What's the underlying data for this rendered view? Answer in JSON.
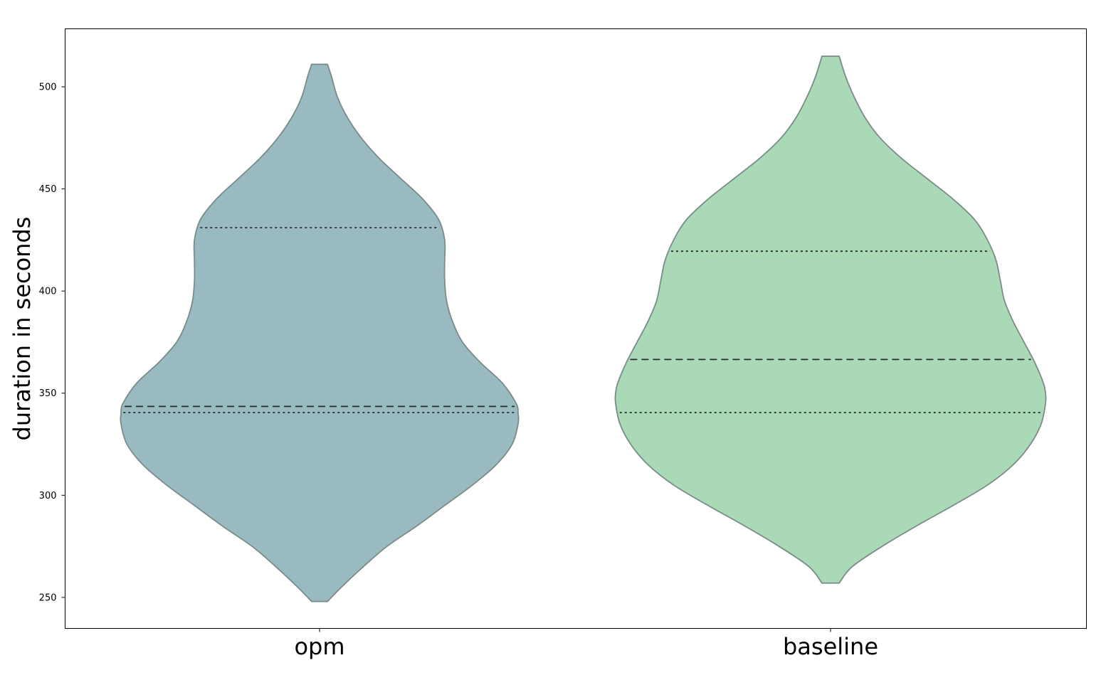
{
  "chart_data": {
    "type": "violin",
    "title": "",
    "xlabel": "",
    "ylabel": "duration in seconds",
    "ylim": [
      234.8,
      528.4
    ],
    "yticks": [
      250,
      300,
      350,
      400,
      450,
      500
    ],
    "grid": false,
    "legend": "none",
    "categories": [
      "opm",
      "baseline"
    ],
    "series": [
      {
        "category": "opm",
        "color": "#99bac1",
        "edge_color": "#7a8b88",
        "min": 248,
        "max": 511,
        "q1": 340.5,
        "median": 343.5,
        "q3": 431,
        "density_profile": [
          [
            248,
            0.04
          ],
          [
            255,
            0.11
          ],
          [
            265,
            0.22
          ],
          [
            275,
            0.34
          ],
          [
            285,
            0.49
          ],
          [
            295,
            0.63
          ],
          [
            305,
            0.77
          ],
          [
            315,
            0.89
          ],
          [
            325,
            0.97
          ],
          [
            335,
            1.0
          ],
          [
            340,
            1.0
          ],
          [
            345,
            0.99
          ],
          [
            355,
            0.92
          ],
          [
            365,
            0.81
          ],
          [
            375,
            0.72
          ],
          [
            385,
            0.67
          ],
          [
            395,
            0.64
          ],
          [
            405,
            0.63
          ],
          [
            415,
            0.63
          ],
          [
            425,
            0.63
          ],
          [
            435,
            0.6
          ],
          [
            445,
            0.52
          ],
          [
            455,
            0.41
          ],
          [
            465,
            0.3
          ],
          [
            475,
            0.21
          ],
          [
            485,
            0.14
          ],
          [
            495,
            0.09
          ],
          [
            505,
            0.06
          ],
          [
            511,
            0.04
          ]
        ]
      },
      {
        "category": "baseline",
        "color": "#a9d9b6",
        "edge_color": "#7a8b88",
        "min": 257,
        "max": 515,
        "q1": 340.5,
        "median": 366.5,
        "q3": 419.5,
        "density_profile": [
          [
            257,
            0.04
          ],
          [
            265,
            0.1
          ],
          [
            275,
            0.24
          ],
          [
            285,
            0.4
          ],
          [
            295,
            0.57
          ],
          [
            305,
            0.73
          ],
          [
            315,
            0.85
          ],
          [
            325,
            0.93
          ],
          [
            335,
            0.98
          ],
          [
            345,
            1.0
          ],
          [
            350,
            1.0
          ],
          [
            355,
            0.99
          ],
          [
            365,
            0.95
          ],
          [
            375,
            0.9
          ],
          [
            385,
            0.85
          ],
          [
            395,
            0.81
          ],
          [
            405,
            0.79
          ],
          [
            415,
            0.77
          ],
          [
            425,
            0.73
          ],
          [
            435,
            0.67
          ],
          [
            445,
            0.57
          ],
          [
            455,
            0.45
          ],
          [
            465,
            0.33
          ],
          [
            475,
            0.23
          ],
          [
            485,
            0.16
          ],
          [
            495,
            0.11
          ],
          [
            505,
            0.07
          ],
          [
            515,
            0.04
          ]
        ]
      }
    ]
  }
}
